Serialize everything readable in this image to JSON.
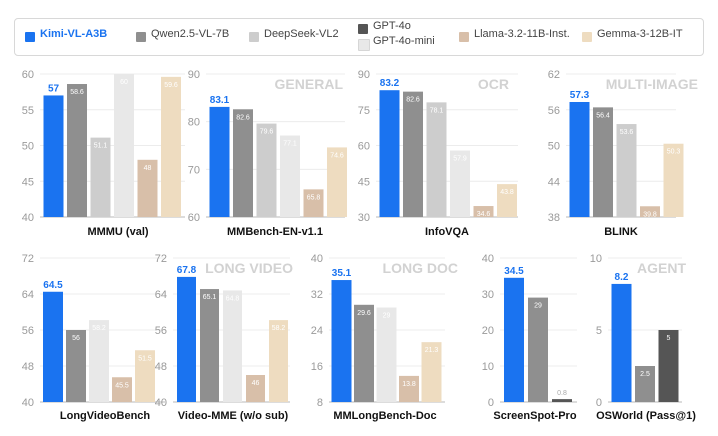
{
  "legend": [
    {
      "name": "Kimi-VL-A3B",
      "color": "#1a73f0"
    },
    {
      "name": "Qwen2.5-VL-7B",
      "color": "#8f8f8f"
    },
    {
      "name": "DeepSeek-VL2",
      "color": "#cdcdcd"
    },
    {
      "name": "GPT-4o",
      "color": "#555555"
    },
    {
      "name": "GPT-4o-mini",
      "color": "#e8e8e8"
    },
    {
      "name": "Llama-3.2-11B-Inst.",
      "color": "#d8bfa9"
    },
    {
      "name": "Gemma-3-12B-IT",
      "color": "#eedcc0"
    }
  ],
  "section_labels": [
    "GENERAL",
    "OCR",
    "MULTI-IMAGE",
    "LONG VIDEO",
    "LONG DOC",
    "AGENT"
  ],
  "chart_data": [
    {
      "type": "bar",
      "title": "MMMU (val)",
      "ylim": [
        40,
        60
      ],
      "yticks": [
        40,
        45,
        50,
        55,
        60
      ],
      "series": [
        "Kimi-VL-A3B",
        "Qwen2.5-VL-7B",
        "DeepSeek-VL2",
        "GPT-4o-mini",
        "Llama-3.2-11B-Inst.",
        "Gemma-3-12B-IT"
      ],
      "values": [
        57,
        58.6,
        51.1,
        60,
        48,
        59.6
      ],
      "labels": [
        "57",
        "58.6",
        "51.1",
        "60",
        "48",
        "59.6"
      ]
    },
    {
      "type": "bar",
      "title": "MMBench-EN-v1.1",
      "ylim": [
        60,
        90
      ],
      "yticks": [
        60,
        70,
        80,
        90
      ],
      "series": [
        "Kimi-VL-A3B",
        "Qwen2.5-VL-7B",
        "DeepSeek-VL2",
        "GPT-4o-mini",
        "Llama-3.2-11B-Inst.",
        "Gemma-3-12B-IT"
      ],
      "values": [
        83.1,
        82.6,
        79.6,
        77.1,
        65.8,
        74.6
      ],
      "labels": [
        "83.1",
        "82.6",
        "79.6",
        "77.1",
        "65.8",
        "74.6"
      ]
    },
    {
      "type": "bar",
      "title": "InfoVQA",
      "ylim": [
        30,
        90
      ],
      "yticks": [
        30,
        45,
        60,
        75,
        90
      ],
      "series": [
        "Kimi-VL-A3B",
        "Qwen2.5-VL-7B",
        "DeepSeek-VL2",
        "GPT-4o-mini",
        "Llama-3.2-11B-Inst.",
        "Gemma-3-12B-IT"
      ],
      "values": [
        83.2,
        82.6,
        78.1,
        57.9,
        34.6,
        43.8
      ],
      "labels": [
        "83.2",
        "82.6",
        "78.1",
        "57.9",
        "34.6",
        "43.8"
      ]
    },
    {
      "type": "bar",
      "title": "BLINK",
      "ylim": [
        38,
        62
      ],
      "yticks": [
        38,
        44,
        50,
        56,
        62
      ],
      "series": [
        "Kimi-VL-A3B",
        "Qwen2.5-VL-7B",
        "DeepSeek-VL2",
        "Llama-3.2-11B-Inst.",
        "Gemma-3-12B-IT"
      ],
      "values": [
        57.3,
        56.4,
        53.6,
        39.8,
        50.3
      ],
      "labels": [
        "57.3",
        "56.4",
        "53.6",
        "39.8",
        "50.3"
      ]
    },
    {
      "type": "bar",
      "title": "LongVideoBench",
      "ylim": [
        40,
        72
      ],
      "yticks": [
        40,
        48,
        56,
        64,
        72
      ],
      "series": [
        "Kimi-VL-A3B",
        "Qwen2.5-VL-7B",
        "GPT-4o-mini",
        "Llama-3.2-11B-Inst.",
        "Gemma-3-12B-IT"
      ],
      "values": [
        64.5,
        56,
        58.2,
        45.5,
        51.5
      ],
      "labels": [
        "64.5",
        "56",
        "58.2",
        "45.5",
        "51.5"
      ]
    },
    {
      "type": "bar",
      "title": "Video-MME (w/o sub)",
      "ylim": [
        40,
        72
      ],
      "yticks": [
        40,
        48,
        56,
        64,
        72
      ],
      "series": [
        "Kimi-VL-A3B",
        "Qwen2.5-VL-7B",
        "GPT-4o-mini",
        "Llama-3.2-11B-Inst.",
        "Gemma-3-12B-IT"
      ],
      "values": [
        67.8,
        65.1,
        64.8,
        46,
        58.2
      ],
      "labels": [
        "67.8",
        "65.1",
        "64.8",
        "46",
        "58.2"
      ]
    },
    {
      "type": "bar",
      "title": "MMLongBench-Doc",
      "ylim": [
        8,
        40
      ],
      "yticks": [
        8,
        16,
        24,
        32,
        40
      ],
      "series": [
        "Kimi-VL-A3B",
        "Qwen2.5-VL-7B",
        "GPT-4o-mini",
        "Llama-3.2-11B-Inst.",
        "Gemma-3-12B-IT"
      ],
      "values": [
        35.1,
        29.6,
        29,
        13.8,
        21.3
      ],
      "labels": [
        "35.1",
        "29.6",
        "29",
        "13.8",
        "21.3"
      ]
    },
    {
      "type": "bar",
      "title": "ScreenSpot-Pro",
      "ylim": [
        0,
        40
      ],
      "yticks": [
        0,
        10,
        20,
        30,
        40
      ],
      "series": [
        "Kimi-VL-A3B",
        "Qwen2.5-VL-7B",
        "GPT-4o"
      ],
      "values": [
        34.5,
        29,
        0.8
      ],
      "labels": [
        "34.5",
        "29",
        "0.8"
      ]
    },
    {
      "type": "bar",
      "title": "OSWorld (Pass@1)",
      "ylim": [
        0,
        10
      ],
      "yticks": [
        0,
        5,
        10
      ],
      "series": [
        "Kimi-VL-A3B",
        "Qwen2.5-VL-7B",
        "GPT-4o"
      ],
      "values": [
        8.2,
        2.5,
        5
      ],
      "labels": [
        "8.2",
        "2.5",
        "5"
      ]
    }
  ]
}
